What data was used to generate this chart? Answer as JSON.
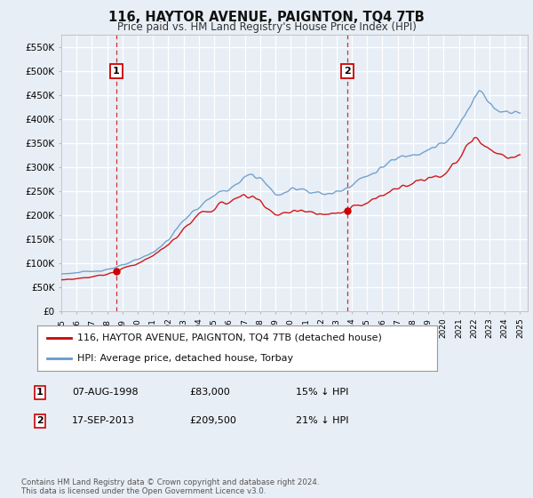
{
  "title": "116, HAYTOR AVENUE, PAIGNTON, TQ4 7TB",
  "subtitle": "Price paid vs. HM Land Registry's House Price Index (HPI)",
  "legend_line1": "116, HAYTOR AVENUE, PAIGNTON, TQ4 7TB (detached house)",
  "legend_line2": "HPI: Average price, detached house, Torbay",
  "annotation1_label": "1",
  "annotation1_date": "07-AUG-1998",
  "annotation1_price": 83000,
  "annotation1_hpi": "15% ↓ HPI",
  "annotation2_label": "2",
  "annotation2_date": "17-SEP-2013",
  "annotation2_price": 209500,
  "annotation2_hpi": "21% ↓ HPI",
  "footnote": "Contains HM Land Registry data © Crown copyright and database right 2024.\nThis data is licensed under the Open Government Licence v3.0.",
  "hpi_color": "#6699cc",
  "price_color": "#cc0000",
  "background_color": "#e8eef5",
  "plot_bg_color": "#e8eef5",
  "grid_color": "#ffffff",
  "ylim": [
    0,
    575000
  ],
  "yticks": [
    0,
    50000,
    100000,
    150000,
    200000,
    250000,
    300000,
    350000,
    400000,
    450000,
    500000,
    550000
  ],
  "ytick_labels": [
    "£0",
    "£50K",
    "£100K",
    "£150K",
    "£200K",
    "£250K",
    "£300K",
    "£350K",
    "£400K",
    "£450K",
    "£500K",
    "£550K"
  ],
  "sale1_x": 1998.59,
  "sale1_y": 83000,
  "sale2_x": 2013.71,
  "sale2_y": 209500,
  "xmin": 1995.0,
  "xmax": 2025.5
}
